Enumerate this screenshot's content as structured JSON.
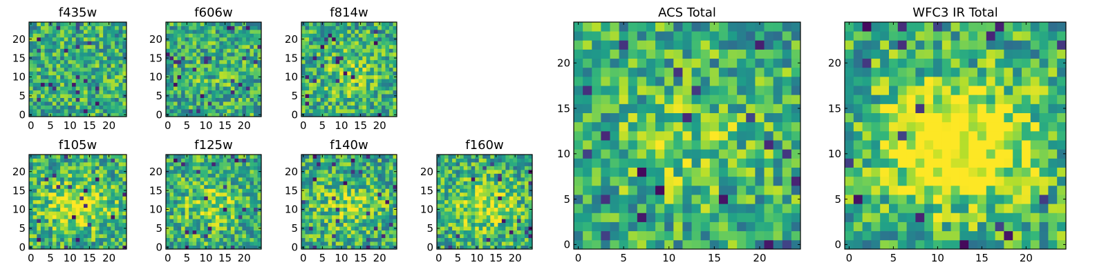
{
  "chart_data": [
    {
      "type": "heatmap",
      "title": "f435w",
      "xticks": [
        "0",
        "5",
        "10",
        "15",
        "20"
      ],
      "yticks": [
        "0",
        "5",
        "10",
        "15",
        "20"
      ],
      "xlim": [
        0,
        25
      ],
      "ylim": [
        0,
        25
      ],
      "grid": false,
      "colormap": "viridis",
      "center_peak": 0.0,
      "seed": 11
    },
    {
      "type": "heatmap",
      "title": "f606w",
      "xticks": [
        "0",
        "5",
        "10",
        "15",
        "20"
      ],
      "yticks": [
        "0",
        "5",
        "10",
        "15",
        "20"
      ],
      "xlim": [
        0,
        25
      ],
      "ylim": [
        0,
        25
      ],
      "grid": false,
      "colormap": "viridis",
      "center_peak": 0.05,
      "seed": 23
    },
    {
      "type": "heatmap",
      "title": "f814w",
      "xticks": [
        "0",
        "5",
        "10",
        "15",
        "20"
      ],
      "yticks": [
        "0",
        "5",
        "10",
        "15",
        "20"
      ],
      "xlim": [
        0,
        25
      ],
      "ylim": [
        0,
        25
      ],
      "grid": false,
      "colormap": "viridis",
      "center_peak": 0.15,
      "seed": 37
    },
    {
      "type": "heatmap",
      "title": "f105w",
      "xticks": [
        "0",
        "5",
        "10",
        "15",
        "20"
      ],
      "yticks": [
        "0",
        "5",
        "10",
        "15",
        "20"
      ],
      "xlim": [
        0,
        25
      ],
      "ylim": [
        0,
        25
      ],
      "grid": false,
      "colormap": "viridis",
      "center_peak": 0.35,
      "seed": 41
    },
    {
      "type": "heatmap",
      "title": "f125w",
      "xticks": [
        "0",
        "5",
        "10",
        "15",
        "20"
      ],
      "yticks": [
        "0",
        "5",
        "10",
        "15",
        "20"
      ],
      "xlim": [
        0,
        25
      ],
      "ylim": [
        0,
        25
      ],
      "grid": false,
      "colormap": "viridis",
      "center_peak": 0.2,
      "seed": 53
    },
    {
      "type": "heatmap",
      "title": "f140w",
      "xticks": [
        "0",
        "5",
        "10",
        "15",
        "20"
      ],
      "yticks": [
        "0",
        "5",
        "10",
        "15",
        "20"
      ],
      "xlim": [
        0,
        25
      ],
      "ylim": [
        0,
        25
      ],
      "grid": false,
      "colormap": "viridis",
      "center_peak": 0.2,
      "seed": 67
    },
    {
      "type": "heatmap",
      "title": "f160w",
      "xticks": [
        "0",
        "5",
        "10",
        "15",
        "20"
      ],
      "yticks": [
        "0",
        "5",
        "10",
        "15",
        "20"
      ],
      "xlim": [
        0,
        25
      ],
      "ylim": [
        0,
        25
      ],
      "grid": false,
      "colormap": "viridis",
      "center_peak": 0.3,
      "seed": 79
    },
    {
      "type": "heatmap",
      "title": "ACS Total",
      "xticks": [
        "0",
        "5",
        "10",
        "15",
        "20"
      ],
      "yticks": [
        "0",
        "5",
        "10",
        "15",
        "20"
      ],
      "xlim": [
        0,
        25
      ],
      "ylim": [
        0,
        25
      ],
      "grid": false,
      "colormap": "viridis",
      "center_peak": 0.15,
      "seed": 83
    },
    {
      "type": "heatmap",
      "title": "WFC3 IR Total",
      "xticks": [
        "0",
        "5",
        "10",
        "15",
        "20"
      ],
      "yticks": [
        "0",
        "5",
        "10",
        "15",
        "20"
      ],
      "xlim": [
        0,
        25
      ],
      "ylim": [
        0,
        25
      ],
      "grid": false,
      "colormap": "viridis",
      "center_peak": 0.55,
      "seed": 97
    }
  ]
}
